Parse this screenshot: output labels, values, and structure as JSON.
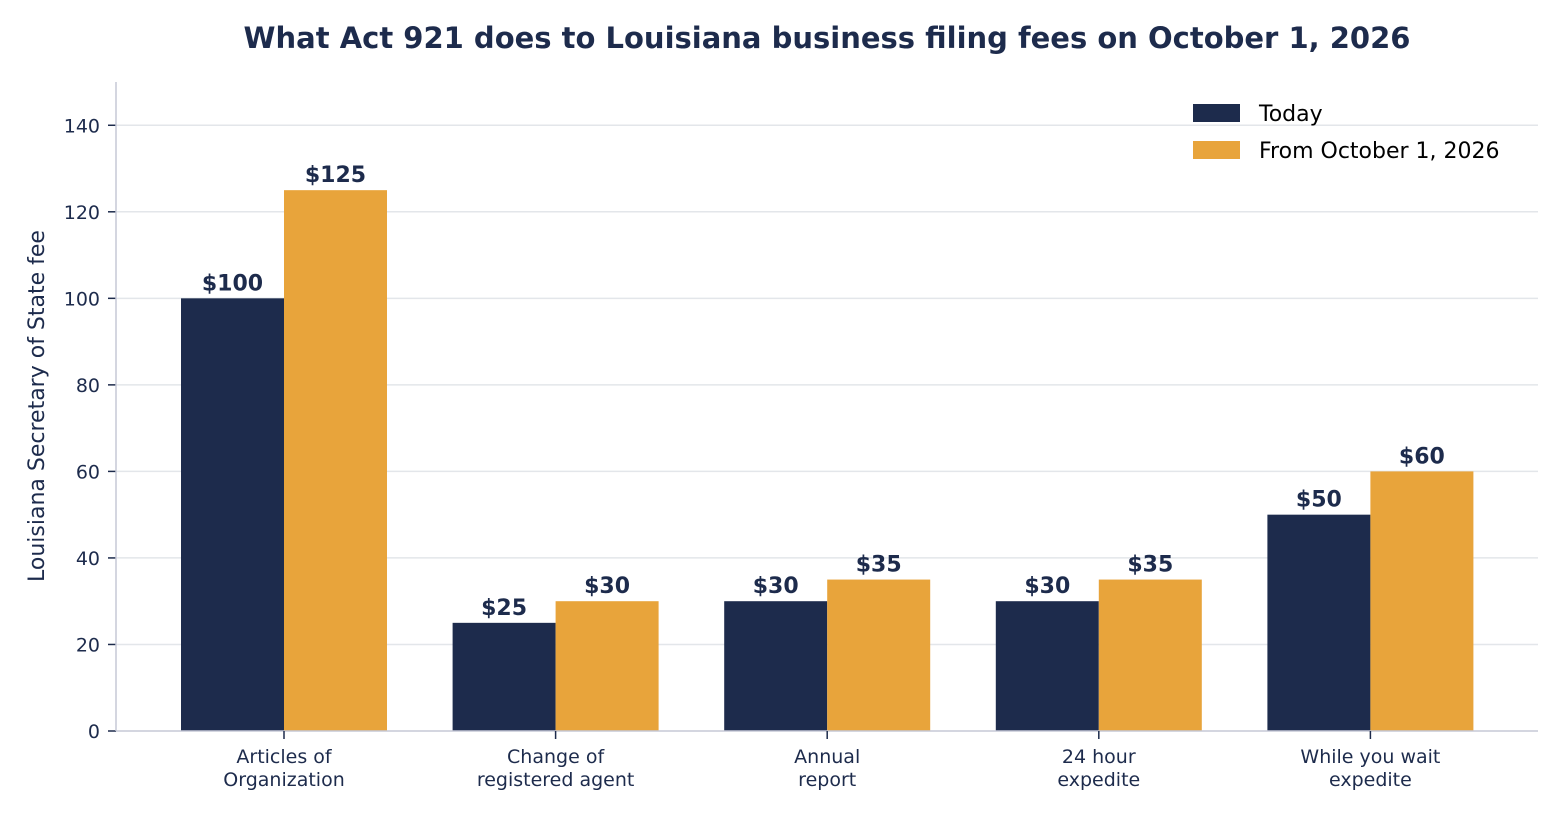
{
  "chart_data": {
    "type": "bar",
    "title": "What Act 921 does to Louisiana business filing fees on October 1, 2026",
    "xlabel": "",
    "ylabel": "Louisiana Secretary of State fee",
    "ylim": [
      0,
      150
    ],
    "yticks": [
      0,
      20,
      40,
      60,
      80,
      100,
      120,
      140
    ],
    "grid": "horizontal",
    "legend_position": "top-right",
    "categories": [
      [
        "Articles of",
        "Organization"
      ],
      [
        "Change of",
        "registered agent"
      ],
      [
        "Annual",
        "report"
      ],
      [
        "24 hour",
        "expedite"
      ],
      [
        "While you wait",
        "expedite"
      ]
    ],
    "series": [
      {
        "name": "Today",
        "color": "#1d2b4c",
        "values": [
          100,
          25,
          30,
          30,
          50
        ],
        "labels": [
          "$100",
          "$25",
          "$30",
          "$30",
          "$50"
        ]
      },
      {
        "name": "From October 1, 2026",
        "color": "#e8a43b",
        "values": [
          125,
          30,
          35,
          35,
          60
        ],
        "labels": [
          "$125",
          "$30",
          "$35",
          "$35",
          "$60"
        ]
      }
    ],
    "colors": {
      "text": "#1d2b4c",
      "grid": "#e3e6ea",
      "axis": "#c5c8d6"
    }
  }
}
